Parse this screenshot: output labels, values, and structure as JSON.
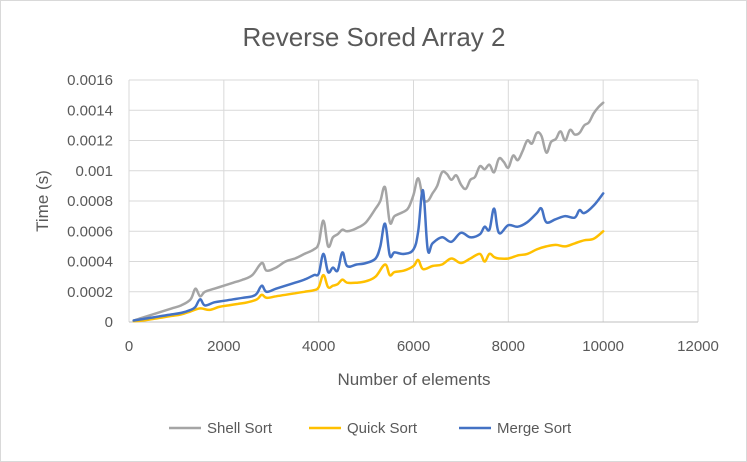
{
  "chart_data": {
    "type": "line",
    "title": "Reverse Sored Array 2",
    "xlabel": "Number of elements",
    "ylabel": "Time (s)",
    "xlim": [
      0,
      12000
    ],
    "ylim": [
      0,
      0.0016
    ],
    "x_ticks": [
      0,
      2000,
      4000,
      6000,
      8000,
      10000,
      12000
    ],
    "y_ticks": [
      0,
      0.0002,
      0.0004,
      0.0006,
      0.0008,
      0.001,
      0.0012,
      0.0014,
      0.0016
    ],
    "x_tick_labels": [
      "0",
      "2000",
      "4000",
      "6000",
      "8000",
      "10000",
      "12000"
    ],
    "y_tick_labels": [
      "0",
      "0.0002",
      "0.0004",
      "0.0006",
      "0.0008",
      "0.001",
      "0.0012",
      "0.0014",
      "0.0016"
    ],
    "grid": true,
    "legend_position": "bottom",
    "series": [
      {
        "name": "Shell Sort",
        "color": "#a5a5a5",
        "x": [
          100,
          300,
          500,
          700,
          900,
          1100,
          1300,
          1400,
          1500,
          1600,
          1800,
          2000,
          2200,
          2400,
          2600,
          2800,
          2900,
          3100,
          3300,
          3500,
          3700,
          3900,
          4000,
          4100,
          4200,
          4300,
          4400,
          4500,
          4600,
          4800,
          5000,
          5200,
          5300,
          5400,
          5500,
          5600,
          5800,
          5900,
          6000,
          6100,
          6200,
          6300,
          6400,
          6500,
          6600,
          6700,
          6800,
          6900,
          7000,
          7100,
          7200,
          7300,
          7400,
          7500,
          7600,
          7700,
          7800,
          7900,
          8000,
          8100,
          8200,
          8300,
          8400,
          8500,
          8600,
          8700,
          8800,
          8900,
          9000,
          9100,
          9200,
          9300,
          9400,
          9500,
          9600,
          9700,
          9800,
          9900,
          10000
        ],
        "values": [
          1e-05,
          3e-05,
          5e-05,
          7e-05,
          9e-05,
          0.00011,
          0.00015,
          0.00022,
          0.00017,
          0.0002,
          0.00022,
          0.00024,
          0.00026,
          0.00028,
          0.00031,
          0.00039,
          0.00034,
          0.00036,
          0.0004,
          0.00042,
          0.00045,
          0.00048,
          0.00052,
          0.00067,
          0.0005,
          0.00056,
          0.00058,
          0.00061,
          0.0006,
          0.00062,
          0.00066,
          0.00075,
          0.0008,
          0.00089,
          0.00066,
          0.0007,
          0.00073,
          0.00076,
          0.00084,
          0.00095,
          0.00082,
          0.0008,
          0.00085,
          0.0009,
          0.00099,
          0.00098,
          0.00094,
          0.00097,
          0.00091,
          0.00088,
          0.00094,
          0.00096,
          0.00103,
          0.00101,
          0.00104,
          0.00099,
          0.00108,
          0.00106,
          0.00102,
          0.0011,
          0.00107,
          0.00113,
          0.0012,
          0.00118,
          0.00125,
          0.00123,
          0.00112,
          0.00119,
          0.00121,
          0.00126,
          0.0012,
          0.00127,
          0.00124,
          0.00125,
          0.0013,
          0.00132,
          0.00138,
          0.00142,
          0.00145
        ]
      },
      {
        "name": "Quick Sort",
        "color": "#ffc000",
        "x": [
          100,
          300,
          500,
          700,
          900,
          1100,
          1300,
          1500,
          1700,
          1900,
          2100,
          2300,
          2500,
          2700,
          2800,
          2900,
          3100,
          3300,
          3500,
          3700,
          3900,
          4000,
          4100,
          4200,
          4300,
          4400,
          4500,
          4600,
          4800,
          5000,
          5200,
          5400,
          5500,
          5600,
          5800,
          6000,
          6100,
          6200,
          6400,
          6600,
          6800,
          7000,
          7200,
          7400,
          7500,
          7600,
          7700,
          7800,
          8000,
          8200,
          8400,
          8600,
          8800,
          9000,
          9200,
          9400,
          9600,
          9800,
          10000
        ],
        "values": [
          5e-06,
          1e-05,
          2e-05,
          3e-05,
          4e-05,
          5e-05,
          7e-05,
          9e-05,
          8e-05,
          0.0001,
          0.00011,
          0.00012,
          0.00013,
          0.00015,
          0.00018,
          0.00016,
          0.00017,
          0.00018,
          0.00019,
          0.0002,
          0.00021,
          0.00023,
          0.00031,
          0.00023,
          0.00024,
          0.00025,
          0.00028,
          0.00026,
          0.00026,
          0.00027,
          0.0003,
          0.00038,
          0.00031,
          0.00033,
          0.00034,
          0.00037,
          0.00041,
          0.00035,
          0.00037,
          0.00038,
          0.00042,
          0.00039,
          0.00042,
          0.00045,
          0.0004,
          0.00045,
          0.00043,
          0.00042,
          0.00042,
          0.00044,
          0.00045,
          0.00048,
          0.0005,
          0.00051,
          0.0005,
          0.00052,
          0.00054,
          0.00055,
          0.0006
        ]
      },
      {
        "name": "Merge Sort",
        "color": "#4472c4",
        "x": [
          100,
          300,
          500,
          700,
          900,
          1100,
          1300,
          1400,
          1500,
          1600,
          1800,
          2000,
          2200,
          2400,
          2600,
          2700,
          2800,
          2900,
          3100,
          3300,
          3500,
          3700,
          3900,
          4000,
          4100,
          4200,
          4300,
          4400,
          4500,
          4600,
          4800,
          5000,
          5200,
          5300,
          5400,
          5500,
          5600,
          5800,
          6000,
          6100,
          6200,
          6300,
          6400,
          6600,
          6800,
          7000,
          7200,
          7400,
          7500,
          7600,
          7700,
          7800,
          8000,
          8200,
          8400,
          8600,
          8700,
          8800,
          9000,
          9200,
          9400,
          9500,
          9600,
          9800,
          10000
        ],
        "values": [
          1e-05,
          2e-05,
          3e-05,
          4e-05,
          5e-05,
          6e-05,
          8e-05,
          0.0001,
          0.00015,
          0.00011,
          0.00013,
          0.00014,
          0.00015,
          0.00016,
          0.00017,
          0.00019,
          0.00024,
          0.0002,
          0.00022,
          0.00024,
          0.00026,
          0.00028,
          0.00031,
          0.00032,
          0.00045,
          0.00033,
          0.00036,
          0.00034,
          0.00046,
          0.00037,
          0.00038,
          0.00039,
          0.00042,
          0.0005,
          0.00065,
          0.00044,
          0.00046,
          0.00045,
          0.00048,
          0.0006,
          0.00087,
          0.00048,
          0.00052,
          0.00056,
          0.00053,
          0.00059,
          0.00056,
          0.00058,
          0.00063,
          0.00061,
          0.00075,
          0.00059,
          0.00064,
          0.00063,
          0.00066,
          0.00072,
          0.00075,
          0.00066,
          0.00068,
          0.0007,
          0.00069,
          0.00074,
          0.00072,
          0.00077,
          0.00085
        ]
      }
    ]
  }
}
